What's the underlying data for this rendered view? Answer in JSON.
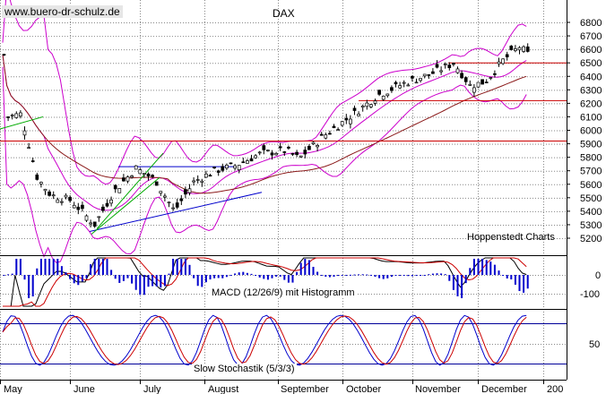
{
  "watermark": "www.buero-dr-schulz.de",
  "source": "Hoppenstedt Charts",
  "colors": {
    "candle": "#000000",
    "bollinger": "#cc00cc",
    "sma_long": "#8b1a1a",
    "support_resistance": "#cc0000",
    "trendline_blue": "#0000cc",
    "trendline_green": "#00aa00",
    "macd_line": "#000000",
    "macd_signal": "#cc0000",
    "histogram": "#0000cc",
    "stoch_k": "#0000cc",
    "stoch_d": "#cc0000",
    "stoch_band": "#000099",
    "grid": "#888888"
  },
  "chart_data": [
    {
      "type": "candlestick",
      "title": "DAX",
      "xlabel": "",
      "ylabel": "",
      "x_ticks": [
        "May",
        "June",
        "July",
        "August",
        "September",
        "October",
        "November",
        "December",
        "200"
      ],
      "y_ticks": [
        5200,
        5300,
        5400,
        5500,
        5600,
        5700,
        5800,
        5900,
        6000,
        6100,
        6200,
        6300,
        6400,
        6500,
        6600,
        6700,
        6800
      ],
      "ylim": [
        5150,
        6830
      ],
      "horizontal_lines": [
        {
          "value": 5920,
          "style": "red line"
        },
        {
          "value": 6220,
          "style": "red line"
        },
        {
          "value": 6500,
          "style": "red line"
        }
      ],
      "anchors_approx": [
        {
          "month": "May",
          "close": 6100
        },
        {
          "month": "May",
          "close": 5650
        },
        {
          "month": "June",
          "close": 5300
        },
        {
          "month": "July",
          "close": 5720
        },
        {
          "month": "July",
          "close": 5400
        },
        {
          "month": "August",
          "close": 5720
        },
        {
          "month": "August",
          "close": 5830
        },
        {
          "month": "September",
          "close": 5780
        },
        {
          "month": "September",
          "close": 5960
        },
        {
          "month": "October",
          "close": 6130
        },
        {
          "month": "October",
          "close": 6260
        },
        {
          "month": "November",
          "close": 6420
        },
        {
          "month": "November",
          "close": 6500
        },
        {
          "month": "November",
          "close": 6330
        },
        {
          "month": "December",
          "close": 6400
        },
        {
          "month": "December",
          "close": 6620
        },
        {
          "month": "December",
          "close": 6560
        }
      ],
      "overlays": [
        "Bollinger Bands",
        "long moving average"
      ]
    },
    {
      "type": "line",
      "title": "MACD (12/26/9) mit Histogramm",
      "y_ticks": [
        0,
        -100
      ],
      "series": [
        {
          "name": "MACD"
        },
        {
          "name": "Signal"
        },
        {
          "name": "Histogramm"
        }
      ]
    },
    {
      "type": "line",
      "title": "Slow Stochastik (5/3/3)",
      "y_ticks": [
        50
      ],
      "ylim": [
        0,
        100
      ],
      "bands": [
        20,
        80
      ],
      "series": [
        {
          "name": "%K"
        },
        {
          "name": "%D"
        }
      ]
    }
  ]
}
